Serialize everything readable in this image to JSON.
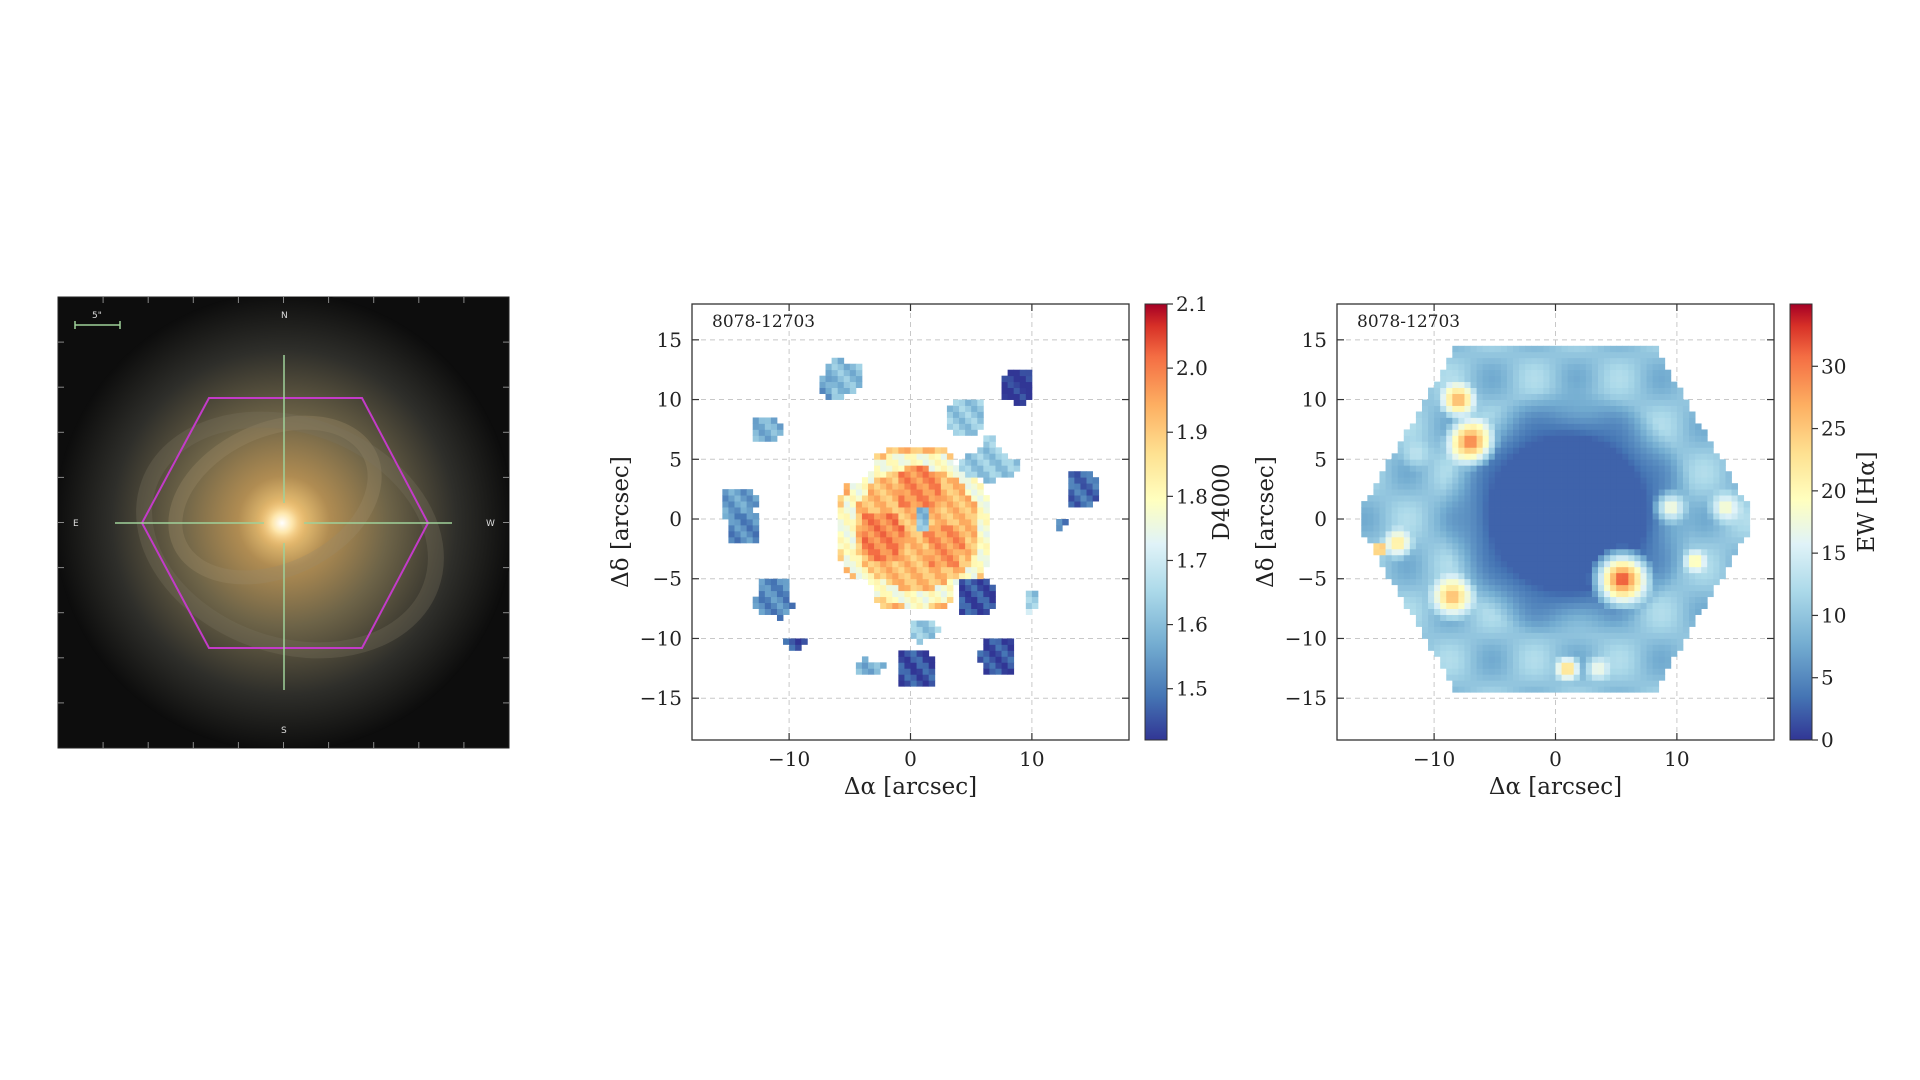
{
  "image_panel": {
    "scale_bar": "5\"",
    "compass": {
      "north": "N",
      "south": "S",
      "east": "E",
      "west": "W"
    }
  },
  "chart_data": [
    {
      "type": "heatmap",
      "id_label": "8078-12703",
      "xlabel": "Δα [arcsec]",
      "ylabel": "Δδ [arcsec]",
      "xlim": [
        -18,
        18
      ],
      "ylim": [
        -18.5,
        18
      ],
      "xticks": [
        -10,
        0,
        10
      ],
      "yticks": [
        15,
        10,
        5,
        0,
        -5,
        -10,
        -15
      ],
      "grid": true,
      "colorbar": {
        "label": "D4000",
        "range": [
          1.42,
          2.1
        ],
        "ticks": [
          1.5,
          1.6,
          1.7,
          1.8,
          1.9,
          2.0,
          2.1
        ],
        "cmap": "RdYlBu_r"
      },
      "regions": [
        {
          "cx": 0.5,
          "cy": -0.8,
          "r": 6.5,
          "value": 1.92,
          "desc": "central ring"
        },
        {
          "cx": 0.5,
          "cy": 2.5,
          "r": 2.2,
          "value": 1.98
        },
        {
          "cx": -2.5,
          "cy": -1.5,
          "r": 2.0,
          "value": 1.99
        },
        {
          "cx": 2.5,
          "cy": -2.0,
          "r": 1.6,
          "value": 1.97
        },
        {
          "cx": 1.0,
          "cy": 0.2,
          "r": 1.0,
          "value": 1.6
        },
        {
          "cx": 6.5,
          "cy": 4.5,
          "r": 2.0,
          "value": 1.62
        },
        {
          "cx": 4.5,
          "cy": 8.5,
          "r": 1.3,
          "value": 1.62
        },
        {
          "cx": -6.0,
          "cy": 12.0,
          "r": 1.6,
          "value": 1.6
        },
        {
          "cx": -7.0,
          "cy": 11.0,
          "r": 1.0,
          "value": 1.55
        },
        {
          "cx": -12.0,
          "cy": 7.5,
          "r": 1.2,
          "value": 1.58
        },
        {
          "cx": 9.0,
          "cy": 11.0,
          "r": 1.1,
          "value": 1.42
        },
        {
          "cx": 14.0,
          "cy": 2.5,
          "r": 1.1,
          "value": 1.48
        },
        {
          "cx": 12.5,
          "cy": -0.5,
          "r": 0.7,
          "value": 1.5
        },
        {
          "cx": -14.5,
          "cy": 1.5,
          "r": 1.5,
          "value": 1.55
        },
        {
          "cx": -13.5,
          "cy": -0.5,
          "r": 1.2,
          "value": 1.52
        },
        {
          "cx": -11.0,
          "cy": -7.0,
          "r": 1.7,
          "value": 1.52
        },
        {
          "cx": 5.0,
          "cy": -6.5,
          "r": 1.4,
          "value": 1.45
        },
        {
          "cx": 10.0,
          "cy": -7.0,
          "r": 1.0,
          "value": 1.62
        },
        {
          "cx": 10.0,
          "cy": -7.8,
          "r": 0.7,
          "value": 1.75
        },
        {
          "cx": 1.0,
          "cy": -9.5,
          "r": 0.9,
          "value": 1.62
        },
        {
          "cx": 7.5,
          "cy": -11.5,
          "r": 1.5,
          "value": 1.45
        },
        {
          "cx": 0.5,
          "cy": -12.5,
          "r": 1.4,
          "value": 1.45
        },
        {
          "cx": -3.5,
          "cy": -12.5,
          "r": 1.0,
          "value": 1.58
        },
        {
          "cx": -9.5,
          "cy": -10.7,
          "r": 0.5,
          "value": 1.45
        }
      ]
    },
    {
      "type": "heatmap",
      "id_label": "8078-12703",
      "xlabel": "Δα [arcsec]",
      "ylabel": "Δδ [arcsec]",
      "xlim": [
        -18,
        18
      ],
      "ylim": [
        -18.5,
        18
      ],
      "xticks": [
        -10,
        0,
        10
      ],
      "yticks": [
        15,
        10,
        5,
        0,
        -5,
        -10,
        -15
      ],
      "grid": true,
      "colorbar": {
        "label": "EW [Hα]",
        "range": [
          0,
          35
        ],
        "ticks": [
          0,
          5,
          10,
          15,
          20,
          25,
          30
        ],
        "cmap": "RdYlBu_r"
      },
      "regions": [
        {
          "cx": 0,
          "cy": 0,
          "r": 15.5,
          "value": 10,
          "desc": "hexagon field"
        },
        {
          "cx": 1,
          "cy": 0.5,
          "r": 8.5,
          "value": 2.5,
          "desc": "central region"
        },
        {
          "cx": -8,
          "cy": 10,
          "r": 1.8,
          "value": 27
        },
        {
          "cx": -7,
          "cy": 6.5,
          "r": 2.4,
          "value": 30
        },
        {
          "cx": 5.5,
          "cy": -5,
          "r": 2.8,
          "value": 33,
          "desc": "south-east arm"
        },
        {
          "cx": -8.5,
          "cy": -6.5,
          "r": 2.2,
          "value": 26
        },
        {
          "cx": -13,
          "cy": -2,
          "r": 1.5,
          "value": 22
        },
        {
          "cx": -14.5,
          "cy": -2.5,
          "r": 0.8,
          "value": 32
        },
        {
          "cx": 1,
          "cy": -12.5,
          "r": 1.3,
          "value": 25
        },
        {
          "cx": 3.5,
          "cy": -12.5,
          "r": 1.3,
          "value": 17
        },
        {
          "cx": 9.5,
          "cy": 1,
          "r": 1.6,
          "value": 18
        },
        {
          "cx": 14,
          "cy": 1,
          "r": 1.6,
          "value": 18
        },
        {
          "cx": 11.5,
          "cy": -3.5,
          "r": 1.2,
          "value": 20
        },
        {
          "cx": -11.5,
          "cy": 5.5,
          "r": 1.5,
          "value": 12
        }
      ]
    }
  ]
}
